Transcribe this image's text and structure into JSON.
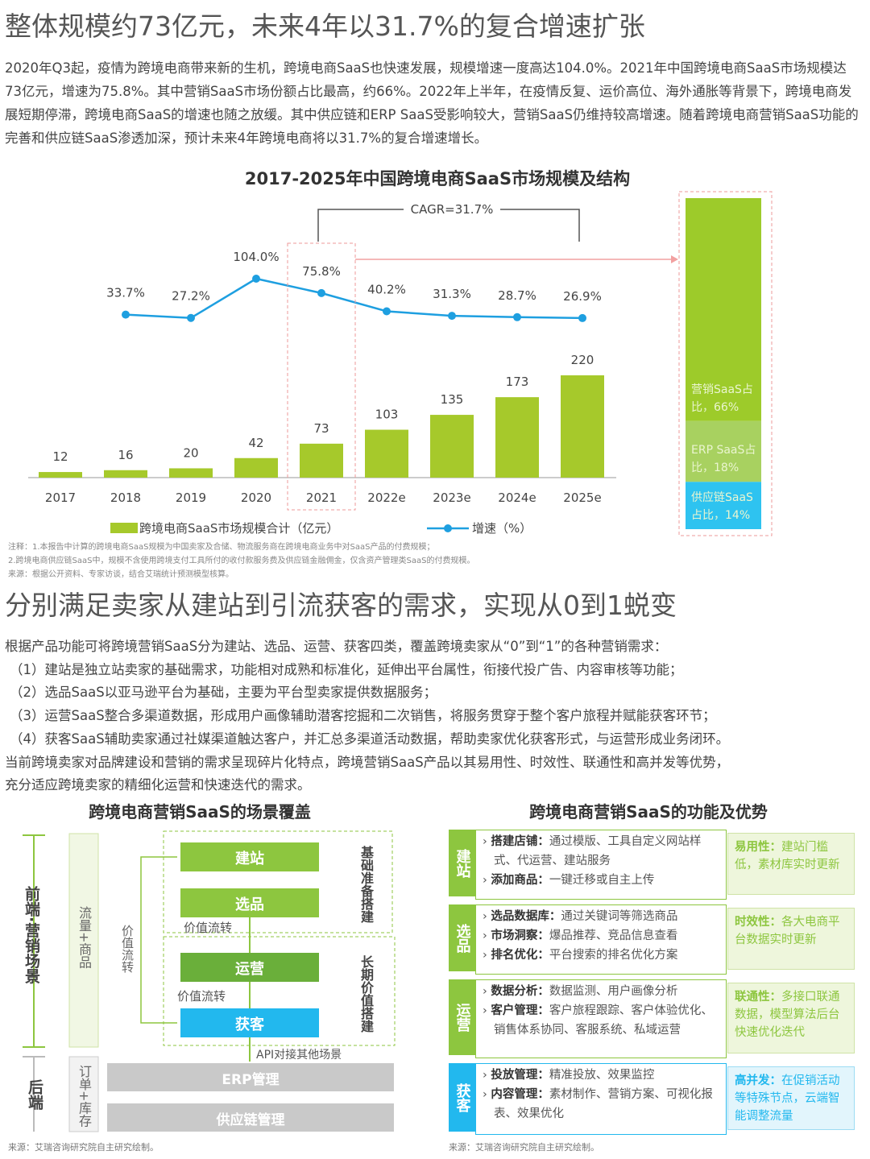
{
  "section1": {
    "heading": "整体规模约73亿元，未来4年以31.7%的复合增速扩张",
    "paragraph": "2020年Q3起，疫情为跨境电商带来新的生机，跨境电商SaaS也快速发展，规模增速一度高达104.0%。2021年中国跨境电商SaaS市场规模达73亿元，增速为75.8%。其中营销SaaS市场份额占比最高，约66%。2022年上半年，在疫情反复、运价高位、海外通胀等背景下，跨境电商发展短期停滞，跨境电商SaaS的增速也随之放缓。其中供应链和ERP SaaS受影响较大，营销SaaS仍维持较高增速。随着跨境电商营销SaaS功能的完善和供应链SaaS渗透加深，预计未来4年跨境电商将以31.7%的复合增速增长。",
    "notes": [
      "注释：1.本报告中计算的跨境电商SaaS规模为中国卖家及合储、物流服务商在跨境电商业务中对SaaS产品的付费规模；",
      "2.跨境电商供应链SaaS中，规模不含使用跨境支付工具所付的收付款服务费及供应链金融佣金，仅含资产管理类SaaS的付费规模。",
      "来源：根据公开资料、专家访谈，结合艾瑞统计预测模型核算。"
    ]
  },
  "chart_data": {
    "type": "combo",
    "title": "2017-2025年中国跨境电商SaaS市场规模及结构",
    "annotation": "CAGR=31.7%",
    "categories": [
      "2017",
      "2018",
      "2019",
      "2020",
      "2021",
      "2022e",
      "2023e",
      "2024e",
      "2025e"
    ],
    "series": [
      {
        "name": "跨境电商SaaS市场规模合计（亿元）",
        "type": "bar",
        "color": "#a6c92b",
        "values": [
          12,
          16,
          20,
          42,
          73,
          103,
          135,
          173,
          220
        ]
      },
      {
        "name": "增速（%）",
        "type": "line",
        "color": "#1e9fe0",
        "values": [
          null,
          33.7,
          27.2,
          104.0,
          75.8,
          40.2,
          31.3,
          28.7,
          26.9
        ],
        "value_labels": [
          null,
          "33.7%",
          "27.2%",
          "104.0%",
          "75.8%",
          "40.2%",
          "31.3%",
          "28.7%",
          "26.9%"
        ]
      }
    ],
    "structure": {
      "values": [
        66,
        18,
        14
      ],
      "value_labels": [
        "营销SaaS占比，66%",
        "ERP SaaS占比，18%",
        "供应链SaaS占比，14%"
      ],
      "colors": [
        "#9dcb2a",
        "#a8d160",
        "#2ec3f0"
      ]
    }
  },
  "section2": {
    "heading": "分别满足卖家从建站到引流获客的需求，实现从0到1蜕变",
    "lines": [
      "根据产品功能可将跨境营销SaaS分为建站、选品、运营、获客四类，覆盖跨境卖家从“0”到“1”的各种营销需求：",
      "（1）建站是独立站卖家的基础需求，功能相对成熟和标准化，延伸出平台属性，衔接代投广告、内容审核等功能；",
      "（2）选品SaaS以亚马逊平台为基础，主要为平台型卖家提供数据服务；",
      "（3）运营SaaS整合多渠道数据，形成用户画像辅助潜客挖掘和二次销售，将服务贯穿于整个客户旅程并赋能获客环节；",
      "（4）获客SaaS辅助卖家通过社媒渠道触达客户，并汇总多渠道活动数据，帮助卖家优化获客形式，与运营形成业务闭环。",
      "当前跨境卖家对品牌建设和营销的需求呈现碎片化特点，跨境营销SaaS产品以其易用性、时效性、联通性和高并发等优势，",
      "充分适应跨境卖家的精细化运营和快速迭代的需求。"
    ]
  },
  "scene_diagram": {
    "title": "跨境电商营销SaaS的场景覆盖",
    "frontend_label": "前端·营销场景",
    "backend_label": "后端",
    "flow_label": "流量+商品",
    "order_label": "订单+库存",
    "side_flow": "价值流转",
    "stages": [
      "建站",
      "选品",
      "运营",
      "获客"
    ],
    "flow_notes": [
      "价值流转",
      "价值流转"
    ],
    "groups": [
      "基础准备搭建",
      "长期价值搭建"
    ],
    "api_note": "API对接其他场景",
    "backend_modules": [
      "ERP管理",
      "供应链管理"
    ],
    "source": "来源：艾瑞咨询研究院自主研究绘制。"
  },
  "feature_table": {
    "title": "跨境电商营销SaaS的功能及优势",
    "rows": [
      {
        "category": "建站",
        "items": [
          {
            "term": "搭建店铺：",
            "text": "通过模版、工具自定义网站样式、代运营、建站服务"
          },
          {
            "term": "添加商品：",
            "text": "一键迁移或自主上传"
          }
        ],
        "advantage": {
          "term": "易用性：",
          "text": "建站门槛低，素材库实时更新"
        }
      },
      {
        "category": "选品",
        "items": [
          {
            "term": "选品数据库：",
            "text": "通过关键词等筛选商品"
          },
          {
            "term": "市场洞察：",
            "text": "爆品推荐、竞品信息查看"
          },
          {
            "term": "排名优化：",
            "text": "平台搜索的排名优化方案"
          }
        ],
        "advantage": {
          "term": "时效性：",
          "text": "各大电商平台数据实时更新"
        }
      },
      {
        "category": "运营",
        "items": [
          {
            "term": "数据分析：",
            "text": "数据监测、用户画像分析"
          },
          {
            "term": "客户管理：",
            "text": "客户旅程跟踪、客户体验优化、销售体系协同、客服系统、私域运营"
          }
        ],
        "advantage": {
          "term": "联通性：",
          "text": "多接口联通数据，模型算法后台快速优化迭代"
        }
      },
      {
        "category": "获客",
        "items": [
          {
            "term": "投放管理：",
            "text": "精准投放、效果监控"
          },
          {
            "term": "内容管理：",
            "text": "素材制作、营销方案、可视化报表、效果优化"
          }
        ],
        "advantage": {
          "term": "高并发：",
          "text": "在促销活动等特殊节点，云端智能调整流量"
        }
      }
    ],
    "source": "来源：艾瑞咨询研究院自主研究绘制。"
  }
}
